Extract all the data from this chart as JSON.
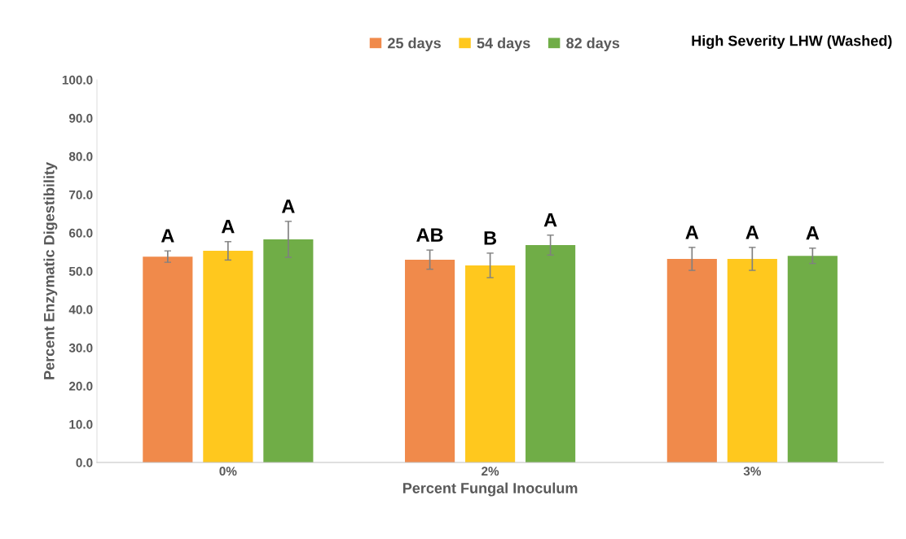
{
  "chart_data": {
    "type": "bar",
    "title": "High Severity LHW (Washed)",
    "xlabel": "Percent Fungal Inoculum",
    "ylabel": "Percent Enzymatic Digestibility",
    "categories": [
      "0%",
      "2%",
      "3%"
    ],
    "series": [
      {
        "name": "25 days",
        "color": "#f08a4b",
        "values": [
          53.8,
          53.0,
          53.2
        ],
        "errors": [
          1.5,
          2.5,
          3.0
        ]
      },
      {
        "name": "54 days",
        "color": "#ffc81e",
        "values": [
          55.3,
          51.5,
          53.2
        ],
        "errors": [
          2.4,
          3.2,
          3.0
        ]
      },
      {
        "name": "82 days",
        "color": "#70ad47",
        "values": [
          58.3,
          56.8,
          54.0
        ],
        "errors": [
          4.7,
          2.6,
          2.0
        ]
      }
    ],
    "annotations": [
      "A",
      "A",
      "A",
      "AB",
      "B",
      "A",
      "A",
      "A",
      "A"
    ],
    "ylim": [
      0,
      100
    ],
    "yticks": [
      {
        "value": 0,
        "label": "0.0"
      },
      {
        "value": 10,
        "label": "10.0"
      },
      {
        "value": 20,
        "label": "20.0"
      },
      {
        "value": 30,
        "label": "30.0"
      },
      {
        "value": 40,
        "label": "40.0"
      },
      {
        "value": 50,
        "label": "50.0"
      },
      {
        "value": 60,
        "label": "60.0"
      },
      {
        "value": 70,
        "label": "70.0"
      },
      {
        "value": 80,
        "label": "80.0"
      },
      {
        "value": 90,
        "label": "90.0"
      },
      {
        "value": 100,
        "label": "100.0"
      }
    ],
    "grid": false,
    "legend": "top right"
  }
}
